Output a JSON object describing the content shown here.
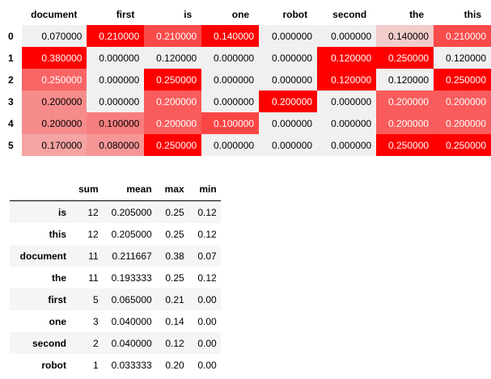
{
  "colors": {
    "heat_low": "#f0f0f0",
    "heat_high": "#ff0000",
    "text_light": "#ffffff",
    "text_dark": "#000000",
    "stripe": "#f5f5f5"
  },
  "heatmap": {
    "columns": [
      "document",
      "first",
      "is",
      "one",
      "robot",
      "second",
      "the",
      "this"
    ],
    "rows": [
      {
        "index": "0",
        "values": [
          0.07,
          0.21,
          0.21,
          0.14,
          0.0,
          0.0,
          0.14,
          0.21
        ],
        "display": [
          "0.070000",
          "0.210000",
          "0.210000",
          "0.140000",
          "0.000000",
          "0.000000",
          "0.140000",
          "0.210000"
        ]
      },
      {
        "index": "1",
        "values": [
          0.38,
          0.0,
          0.12,
          0.0,
          0.0,
          0.12,
          0.25,
          0.12
        ],
        "display": [
          "0.380000",
          "0.000000",
          "0.120000",
          "0.000000",
          "0.000000",
          "0.120000",
          "0.250000",
          "0.120000"
        ]
      },
      {
        "index": "2",
        "values": [
          0.25,
          0.0,
          0.25,
          0.0,
          0.0,
          0.12,
          0.12,
          0.25
        ],
        "display": [
          "0.250000",
          "0.000000",
          "0.250000",
          "0.000000",
          "0.000000",
          "0.120000",
          "0.120000",
          "0.250000"
        ]
      },
      {
        "index": "3",
        "values": [
          0.2,
          0.0,
          0.2,
          0.0,
          0.2,
          0.0,
          0.2,
          0.2
        ],
        "display": [
          "0.200000",
          "0.000000",
          "0.200000",
          "0.000000",
          "0.200000",
          "0.000000",
          "0.200000",
          "0.200000"
        ]
      },
      {
        "index": "4",
        "values": [
          0.2,
          0.1,
          0.2,
          0.1,
          0.0,
          0.0,
          0.2,
          0.2
        ],
        "display": [
          "0.200000",
          "0.100000",
          "0.200000",
          "0.100000",
          "0.000000",
          "0.000000",
          "0.200000",
          "0.200000"
        ]
      },
      {
        "index": "5",
        "values": [
          0.17,
          0.08,
          0.25,
          0.0,
          0.0,
          0.0,
          0.25,
          0.25
        ],
        "display": [
          "0.170000",
          "0.080000",
          "0.250000",
          "0.000000",
          "0.000000",
          "0.000000",
          "0.250000",
          "0.250000"
        ]
      }
    ]
  },
  "stats": {
    "columns": [
      "sum",
      "mean",
      "max",
      "min"
    ],
    "rows": [
      {
        "label": "is",
        "cells": [
          "12",
          "0.205000",
          "0.25",
          "0.12"
        ]
      },
      {
        "label": "this",
        "cells": [
          "12",
          "0.205000",
          "0.25",
          "0.12"
        ]
      },
      {
        "label": "document",
        "cells": [
          "11",
          "0.211667",
          "0.38",
          "0.07"
        ]
      },
      {
        "label": "the",
        "cells": [
          "11",
          "0.193333",
          "0.25",
          "0.12"
        ]
      },
      {
        "label": "first",
        "cells": [
          "5",
          "0.065000",
          "0.21",
          "0.00"
        ]
      },
      {
        "label": "one",
        "cells": [
          "3",
          "0.040000",
          "0.14",
          "0.00"
        ]
      },
      {
        "label": "second",
        "cells": [
          "2",
          "0.040000",
          "0.12",
          "0.00"
        ]
      },
      {
        "label": "robot",
        "cells": [
          "1",
          "0.033333",
          "0.20",
          "0.00"
        ]
      }
    ]
  }
}
